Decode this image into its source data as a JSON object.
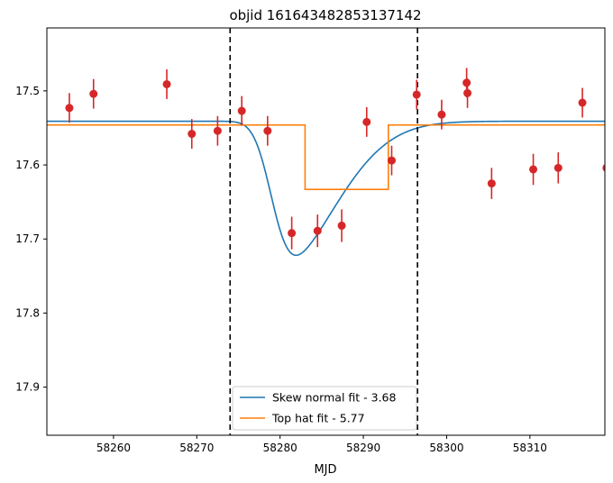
{
  "chart_data": {
    "type": "scatter",
    "title": "objid 161643482853137142",
    "xlabel": "MJD",
    "ylabel": "",
    "xlim": [
      58252,
      58319
    ],
    "ylim": [
      17.965,
      17.415
    ],
    "y_inverted": true,
    "grid": false,
    "legend_position": "bottom-center",
    "x_ticks": [
      58260,
      58270,
      58280,
      58290,
      58300,
      58310
    ],
    "x_tick_labels": [
      "58260",
      "58270",
      "58280",
      "58290",
      "58300",
      "58310"
    ],
    "y_ticks": [
      17.5,
      17.6,
      17.7,
      17.8,
      17.9
    ],
    "y_tick_labels": [
      "17.5",
      "17.6",
      "17.7",
      "17.8",
      "17.9"
    ],
    "vlines": [
      58274.0,
      58296.5
    ],
    "observations": {
      "color": "#d62728",
      "points": [
        {
          "x": 58254.7,
          "y": 17.523,
          "err": 0.02
        },
        {
          "x": 58257.6,
          "y": 17.504,
          "err": 0.02
        },
        {
          "x": 58266.4,
          "y": 17.491,
          "err": 0.02
        },
        {
          "x": 58269.4,
          "y": 17.558,
          "err": 0.02
        },
        {
          "x": 58272.5,
          "y": 17.554,
          "err": 0.02
        },
        {
          "x": 58275.4,
          "y": 17.527,
          "err": 0.02
        },
        {
          "x": 58278.5,
          "y": 17.554,
          "err": 0.02
        },
        {
          "x": 58281.4,
          "y": 17.692,
          "err": 0.022
        },
        {
          "x": 58284.5,
          "y": 17.689,
          "err": 0.022
        },
        {
          "x": 58287.4,
          "y": 17.682,
          "err": 0.022
        },
        {
          "x": 58290.4,
          "y": 17.542,
          "err": 0.02
        },
        {
          "x": 58293.4,
          "y": 17.594,
          "err": 0.02
        },
        {
          "x": 58296.4,
          "y": 17.505,
          "err": 0.02
        },
        {
          "x": 58299.4,
          "y": 17.532,
          "err": 0.02
        },
        {
          "x": 58302.4,
          "y": 17.489,
          "err": 0.02
        },
        {
          "x": 58302.5,
          "y": 17.503,
          "err": 0.02
        },
        {
          "x": 58305.4,
          "y": 17.625,
          "err": 0.021
        },
        {
          "x": 58310.4,
          "y": 17.606,
          "err": 0.021
        },
        {
          "x": 58313.4,
          "y": 17.604,
          "err": 0.021
        },
        {
          "x": 58316.3,
          "y": 17.516,
          "err": 0.02
        },
        {
          "x": 58319.2,
          "y": 17.604,
          "err": 0.02
        }
      ]
    },
    "series": [
      {
        "name": "Skew normal fit - 3.68",
        "color": "#1f77b4",
        "model": "skew_normal",
        "baseline": 17.541,
        "amplitude": 0.181,
        "loc": 58279.0,
        "scale": 7.0,
        "shape": 4.0,
        "peak_mag": 17.722,
        "peak_mjd": 58283.3
      },
      {
        "name": "Top hat fit - 5.77",
        "color": "#ff7f0e",
        "model": "top_hat",
        "baseline": 17.546,
        "depth_mag": 17.633,
        "start": 58283.0,
        "end": 58293.0
      }
    ]
  }
}
